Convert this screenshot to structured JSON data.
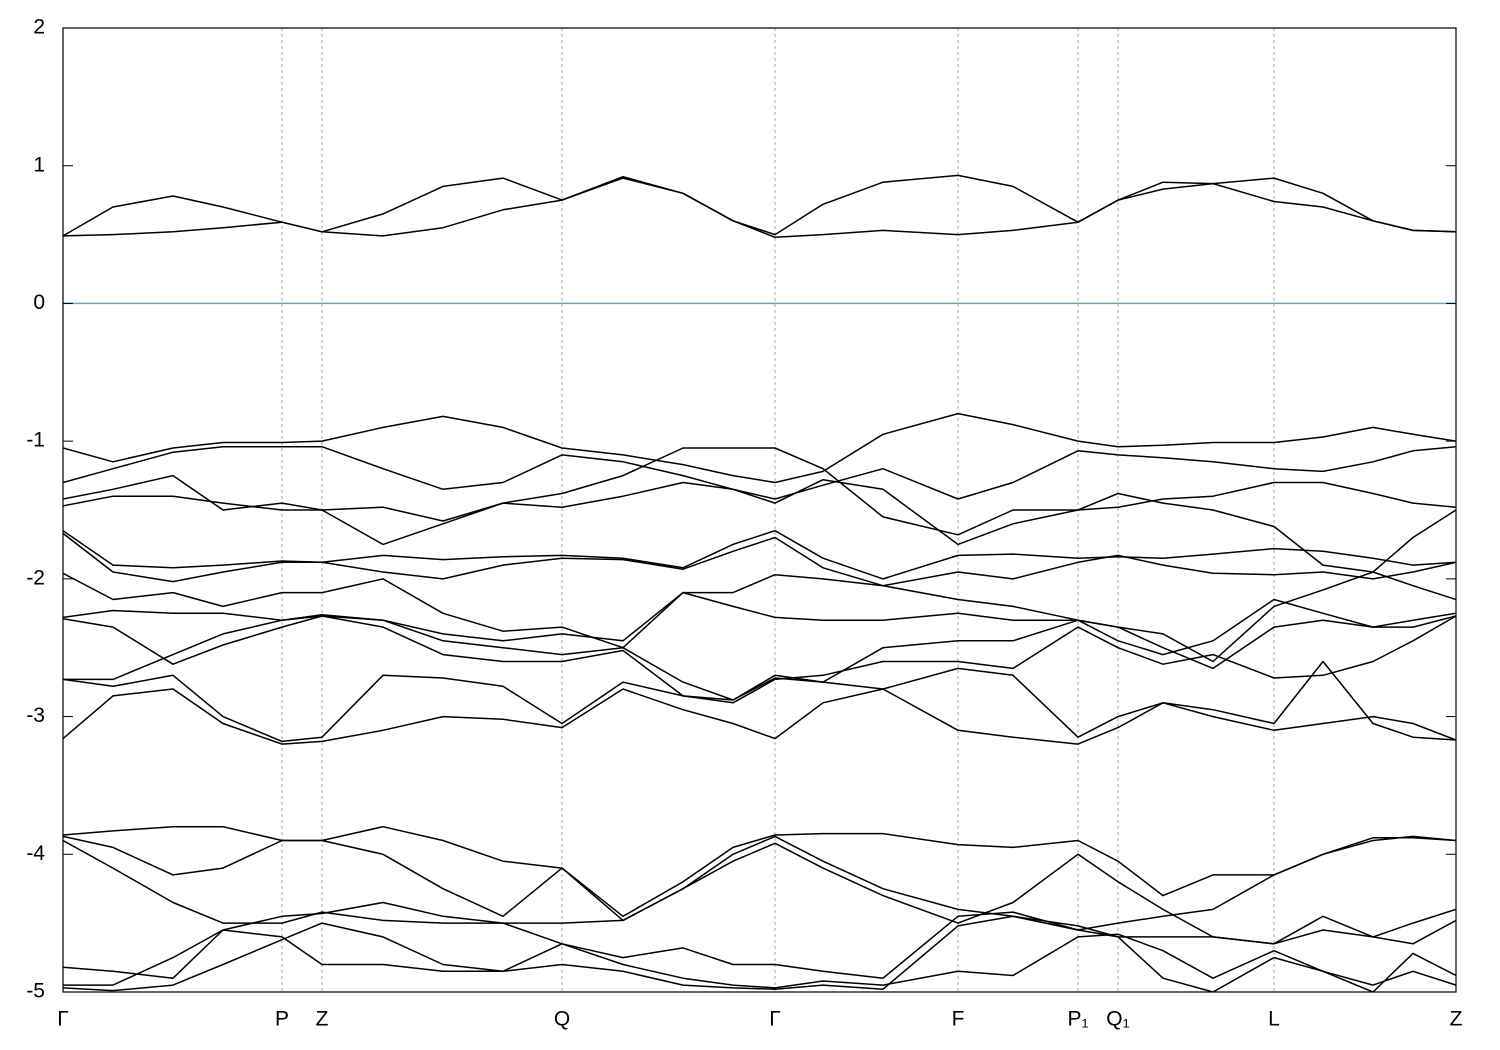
{
  "chart_data": {
    "type": "line",
    "x": [
      0,
      50,
      110,
      160,
      219,
      259,
      320,
      380,
      440,
      499,
      560,
      620,
      670,
      712,
      760,
      820,
      895,
      950,
      1015,
      1055,
      1100,
      1150,
      1211,
      1260,
      1310,
      1350,
      1393
    ],
    "xlim": [
      0,
      1393
    ],
    "xticks": [
      {
        "value": 0,
        "label": "Γ"
      },
      {
        "value": 219,
        "label": "P"
      },
      {
        "value": 259,
        "label": "Z"
      },
      {
        "value": 499,
        "label": "Q"
      },
      {
        "value": 712,
        "label": "Γ"
      },
      {
        "value": 895,
        "label": "F"
      },
      {
        "value": 1015,
        "label": "P₁"
      },
      {
        "value": 1055,
        "label": "Q₁"
      },
      {
        "value": 1211,
        "label": "L"
      },
      {
        "value": 1393,
        "label": "Z"
      }
    ],
    "ylim": [
      -5,
      2
    ],
    "yticks": [
      -5,
      -4,
      -3,
      -2,
      -1,
      0,
      1,
      2
    ],
    "grid": true,
    "fermi_level": 0,
    "fermi_color": "#5aaccc",
    "series": [
      {
        "color": "#000000",
        "values": [
          0.49,
          0.5,
          0.52,
          0.55,
          0.59,
          0.52,
          0.49,
          0.55,
          0.68,
          0.75,
          0.91,
          0.8,
          0.6,
          0.48,
          0.5,
          0.53,
          0.5,
          0.53,
          0.59,
          0.75,
          0.83,
          0.87,
          0.74,
          0.7,
          0.6,
          0.53,
          0.52
        ]
      },
      {
        "color": "#000000",
        "values": [
          0.49,
          0.7,
          0.78,
          0.7,
          0.59,
          0.52,
          0.65,
          0.85,
          0.91,
          0.75,
          0.92,
          0.8,
          0.6,
          0.5,
          0.72,
          0.88,
          0.93,
          0.85,
          0.59,
          0.75,
          0.88,
          0.87,
          0.91,
          0.8,
          0.6,
          0.53,
          0.52
        ]
      },
      {
        "color": "#000000",
        "values": [
          -1.05,
          -1.15,
          -1.05,
          -1.01,
          -1.01,
          -1.0,
          -0.9,
          -0.82,
          -0.9,
          -1.05,
          -1.1,
          -1.17,
          -1.25,
          -1.3,
          -1.22,
          -0.95,
          -0.8,
          -0.88,
          -1.0,
          -1.04,
          -1.03,
          -1.01,
          -1.01,
          -0.97,
          -0.9,
          -0.95,
          -1.0
        ]
      },
      {
        "color": "#000000",
        "values": [
          -1.3,
          -1.2,
          -1.08,
          -1.04,
          -1.04,
          -1.04,
          -1.2,
          -1.35,
          -1.3,
          -1.1,
          -1.15,
          -1.25,
          -1.35,
          -1.42,
          -1.32,
          -1.2,
          -1.42,
          -1.3,
          -1.07,
          -1.1,
          -1.12,
          -1.15,
          -1.2,
          -1.22,
          -1.15,
          -1.07,
          -1.04
        ]
      },
      {
        "color": "#000000",
        "values": [
          -1.42,
          -1.35,
          -1.25,
          -1.5,
          -1.45,
          -1.5,
          -1.75,
          -1.6,
          -1.45,
          -1.38,
          -1.25,
          -1.05,
          -1.05,
          -1.05,
          -1.2,
          -1.55,
          -1.68,
          -1.5,
          -1.5,
          -1.48,
          -1.42,
          -1.4,
          -1.3,
          -1.3,
          -1.38,
          -1.45,
          -1.48
        ]
      },
      {
        "color": "#000000",
        "values": [
          -1.47,
          -1.4,
          -1.4,
          -1.45,
          -1.5,
          -1.5,
          -1.48,
          -1.58,
          -1.45,
          -1.48,
          -1.4,
          -1.3,
          -1.35,
          -1.45,
          -1.28,
          -1.35,
          -1.75,
          -1.6,
          -1.5,
          -1.38,
          -1.45,
          -1.5,
          -1.62,
          -1.9,
          -1.95,
          -1.7,
          -1.5
        ]
      },
      {
        "color": "#000000",
        "values": [
          -1.65,
          -1.9,
          -1.92,
          -1.9,
          -1.87,
          -1.88,
          -1.83,
          -1.86,
          -1.84,
          -1.83,
          -1.85,
          -1.92,
          -1.75,
          -1.65,
          -1.85,
          -2.0,
          -1.83,
          -1.82,
          -1.85,
          -1.84,
          -1.85,
          -1.82,
          -1.78,
          -1.8,
          -1.85,
          -1.9,
          -1.88
        ]
      },
      {
        "color": "#000000",
        "values": [
          -1.67,
          -1.95,
          -2.02,
          -1.95,
          -1.88,
          -1.88,
          -1.95,
          -2.0,
          -1.9,
          -1.85,
          -1.86,
          -1.93,
          -1.8,
          -1.7,
          -1.92,
          -2.05,
          -1.95,
          -2.0,
          -1.88,
          -1.83,
          -1.9,
          -1.96,
          -1.97,
          -1.95,
          -2.0,
          -1.95,
          -1.88
        ]
      },
      {
        "color": "#000000",
        "values": [
          -1.96,
          -2.15,
          -2.1,
          -2.2,
          -2.1,
          -2.1,
          -2.0,
          -2.25,
          -2.38,
          -2.35,
          -2.5,
          -2.1,
          -2.1,
          -1.97,
          -2.0,
          -2.05,
          -2.15,
          -2.2,
          -2.3,
          -2.35,
          -2.4,
          -2.6,
          -2.2,
          -2.08,
          -1.95,
          -2.05,
          -2.15
        ]
      },
      {
        "color": "#000000",
        "values": [
          -2.28,
          -2.23,
          -2.25,
          -2.25,
          -2.3,
          -2.26,
          -2.3,
          -2.4,
          -2.45,
          -2.4,
          -2.45,
          -2.1,
          -2.2,
          -2.28,
          -2.3,
          -2.3,
          -2.25,
          -2.3,
          -2.3,
          -2.35,
          -2.5,
          -2.65,
          -2.35,
          -2.3,
          -2.35,
          -2.3,
          -2.25
        ]
      },
      {
        "color": "#000000",
        "values": [
          -2.29,
          -2.35,
          -2.62,
          -2.48,
          -2.35,
          -2.27,
          -2.3,
          -2.45,
          -2.5,
          -2.55,
          -2.5,
          -2.75,
          -2.88,
          -2.7,
          -2.75,
          -2.5,
          -2.45,
          -2.45,
          -2.3,
          -2.45,
          -2.55,
          -2.45,
          -2.15,
          -2.25,
          -2.35,
          -2.35,
          -2.27
        ]
      },
      {
        "color": "#000000",
        "values": [
          -2.73,
          -2.73,
          -2.55,
          -2.4,
          -2.3,
          -2.27,
          -2.35,
          -2.55,
          -2.6,
          -2.6,
          -2.52,
          -2.85,
          -2.9,
          -2.73,
          -2.7,
          -2.6,
          -2.6,
          -2.65,
          -2.35,
          -2.5,
          -2.62,
          -2.55,
          -2.72,
          -2.7,
          -2.6,
          -2.45,
          -2.27
        ]
      },
      {
        "color": "#000000",
        "values": [
          -2.73,
          -2.78,
          -2.7,
          -3.0,
          -3.18,
          -3.15,
          -2.7,
          -2.72,
          -2.78,
          -3.05,
          -2.75,
          -2.85,
          -2.88,
          -2.72,
          -2.75,
          -2.8,
          -2.65,
          -2.7,
          -3.15,
          -3.0,
          -2.9,
          -2.95,
          -3.05,
          -2.6,
          -3.05,
          -3.15,
          -3.17
        ]
      },
      {
        "color": "#000000",
        "values": [
          -3.16,
          -2.85,
          -2.8,
          -3.05,
          -3.2,
          -3.18,
          -3.1,
          -3.0,
          -3.02,
          -3.08,
          -2.8,
          -2.95,
          -3.05,
          -3.16,
          -2.9,
          -2.8,
          -3.1,
          -3.15,
          -3.2,
          -3.08,
          -2.9,
          -3.0,
          -3.1,
          -3.05,
          -3.0,
          -3.05,
          -3.17
        ]
      },
      {
        "color": "#000000",
        "values": [
          -3.86,
          -3.83,
          -3.8,
          -3.8,
          -3.9,
          -3.9,
          -3.8,
          -3.9,
          -4.05,
          -4.1,
          -4.45,
          -4.2,
          -3.95,
          -3.86,
          -3.85,
          -3.85,
          -3.93,
          -3.95,
          -3.9,
          -4.05,
          -4.3,
          -4.15,
          -4.15,
          -4.0,
          -3.9,
          -3.87,
          -3.9
        ]
      },
      {
        "color": "#000000",
        "values": [
          -3.87,
          -3.95,
          -4.15,
          -4.1,
          -3.9,
          -3.9,
          -4.0,
          -4.25,
          -4.45,
          -4.1,
          -4.48,
          -4.25,
          -4.0,
          -3.87,
          -4.05,
          -4.25,
          -4.4,
          -4.45,
          -4.55,
          -4.5,
          -4.45,
          -4.4,
          -4.15,
          -4.0,
          -3.88,
          -3.88,
          -3.9
        ]
      },
      {
        "color": "#000000",
        "values": [
          -3.9,
          -4.1,
          -4.35,
          -4.5,
          -4.5,
          -4.42,
          -4.48,
          -4.5,
          -4.5,
          -4.5,
          -4.48,
          -4.25,
          -4.05,
          -3.92,
          -4.1,
          -4.3,
          -4.5,
          -4.35,
          -4.0,
          -4.2,
          -4.4,
          -4.6,
          -4.65,
          -4.45,
          -4.6,
          -4.65,
          -4.48
        ]
      },
      {
        "color": "#000000",
        "values": [
          -4.82,
          -4.85,
          -4.9,
          -4.55,
          -4.45,
          -4.43,
          -4.35,
          -4.45,
          -4.5,
          -4.65,
          -4.75,
          -4.68,
          -4.8,
          -4.8,
          -4.85,
          -4.9,
          -4.45,
          -4.42,
          -4.55,
          -4.6,
          -4.6,
          -4.6,
          -4.65,
          -4.55,
          -4.6,
          -4.5,
          -4.4
        ]
      },
      {
        "color": "#000000",
        "values": [
          -4.95,
          -4.95,
          -4.75,
          -4.55,
          -4.6,
          -4.8,
          -4.8,
          -4.85,
          -4.85,
          -4.65,
          -4.8,
          -4.9,
          -4.95,
          -4.97,
          -4.92,
          -4.95,
          -4.85,
          -4.88,
          -4.6,
          -4.58,
          -4.7,
          -4.9,
          -4.7,
          -4.85,
          -4.95,
          -4.85,
          -4.95
        ]
      },
      {
        "color": "#000000",
        "values": [
          -4.97,
          -4.99,
          -4.95,
          -4.8,
          -4.62,
          -4.5,
          -4.6,
          -4.8,
          -4.85,
          -4.8,
          -4.85,
          -4.95,
          -4.97,
          -4.98,
          -4.95,
          -4.98,
          -4.52,
          -4.45,
          -4.52,
          -4.6,
          -4.9,
          -5.0,
          -4.75,
          -4.85,
          -5.0,
          -4.72,
          -4.88
        ]
      }
    ]
  }
}
